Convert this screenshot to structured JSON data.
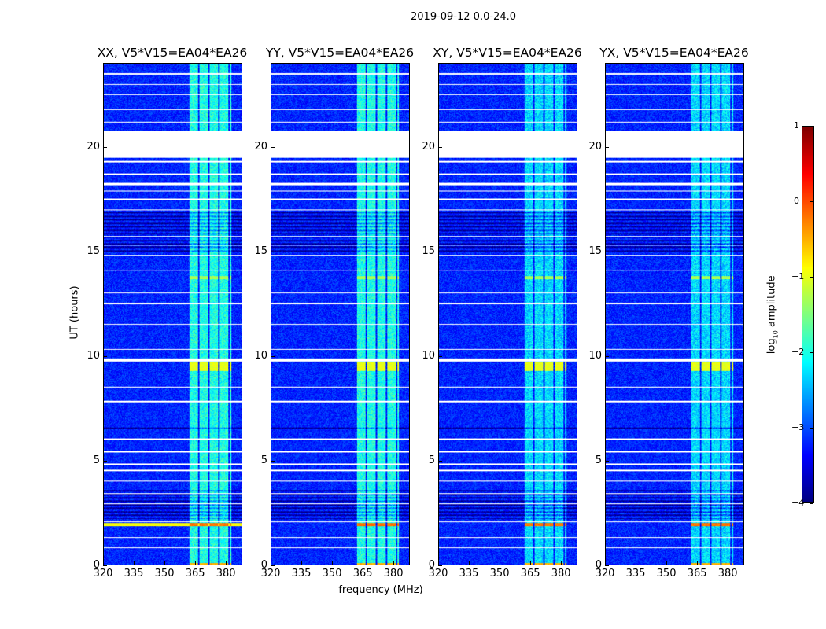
{
  "chart_data": {
    "type": "heatmap",
    "suptitle": "2019-09-12 0.0-24.0",
    "xlabel": "frequency (MHz)",
    "ylabel": "UT (hours)",
    "xlim": [
      320,
      388
    ],
    "ylim": [
      0,
      24
    ],
    "xticks": [
      "320",
      "335",
      "350",
      "365",
      "380"
    ],
    "xtick_values": [
      320,
      335,
      350,
      365,
      380
    ],
    "yticks": [
      "0",
      "5",
      "10",
      "15",
      "20"
    ],
    "ytick_values": [
      0,
      5,
      10,
      15,
      20
    ],
    "panels": [
      {
        "title": "XX, V5*V15=EA04*EA26",
        "pol": "XX"
      },
      {
        "title": "YY, V5*V15=EA04*EA26",
        "pol": "YY"
      },
      {
        "title": "XY, V5*V15=EA04*EA26",
        "pol": "XY"
      },
      {
        "title": "YX, V5*V15=EA04*EA26",
        "pol": "YX"
      }
    ],
    "colorbar": {
      "label": "log10 amplitude",
      "label_base": "log",
      "label_sub": "10",
      "label_rest": " amplitude",
      "colormap": "jet",
      "range": [
        -4,
        1
      ],
      "ticks": [
        "1",
        "0",
        "−1",
        "−2",
        "−3",
        "−4"
      ],
      "tick_values": [
        1,
        0,
        -1,
        -2,
        -3,
        -4
      ]
    },
    "background_log_amplitude": -3.2,
    "rfi_band_mhz": [
      362,
      383
    ],
    "rfi_log_amplitude": -2.0,
    "flagged_hours": [
      [
        19.5,
        20.8
      ],
      [
        9.75,
        9.9
      ],
      [
        0.8,
        0.85
      ],
      [
        1.3,
        1.35
      ],
      [
        2.05,
        2.1
      ],
      [
        2.9,
        2.95
      ],
      [
        3.4,
        3.45
      ],
      [
        4.0,
        4.05
      ],
      [
        4.5,
        4.55
      ],
      [
        4.8,
        4.85
      ],
      [
        5.4,
        5.45
      ],
      [
        6.0,
        6.05
      ],
      [
        7.8,
        7.85
      ],
      [
        8.5,
        8.55
      ],
      [
        10.3,
        10.35
      ],
      [
        11.5,
        11.55
      ],
      [
        12.5,
        12.55
      ],
      [
        13.0,
        13.05
      ],
      [
        14.1,
        14.15
      ],
      [
        14.8,
        14.85
      ],
      [
        15.3,
        15.35
      ],
      [
        15.7,
        15.75
      ],
      [
        17.0,
        17.05
      ],
      [
        17.5,
        17.55
      ],
      [
        17.9,
        17.95
      ],
      [
        18.2,
        18.3
      ],
      [
        18.7,
        18.75
      ],
      [
        19.3,
        19.35
      ],
      [
        21.2,
        21.25
      ],
      [
        21.8,
        21.85
      ],
      [
        22.5,
        22.55
      ],
      [
        23.0,
        23.05
      ],
      [
        23.5,
        23.55
      ]
    ],
    "bright_events": [
      {
        "hours": [
          9.3,
          9.7
        ],
        "rfi_log_amplitude": -1.0
      },
      {
        "hours": [
          1.85,
          2.0
        ],
        "all_log_amplitude": -0.9,
        "rfi_log_amplitude": -0.2
      },
      {
        "hours": [
          13.7,
          13.85
        ],
        "rfi_log_amplitude": -1.3
      },
      {
        "hours": [
          0.0,
          0.1
        ],
        "rfi_log_amplitude": -0.5
      }
    ],
    "dark_hours": [
      [
        2.2,
        3.6
      ],
      [
        15.0,
        17.0
      ],
      [
        6.4,
        6.6
      ]
    ]
  }
}
